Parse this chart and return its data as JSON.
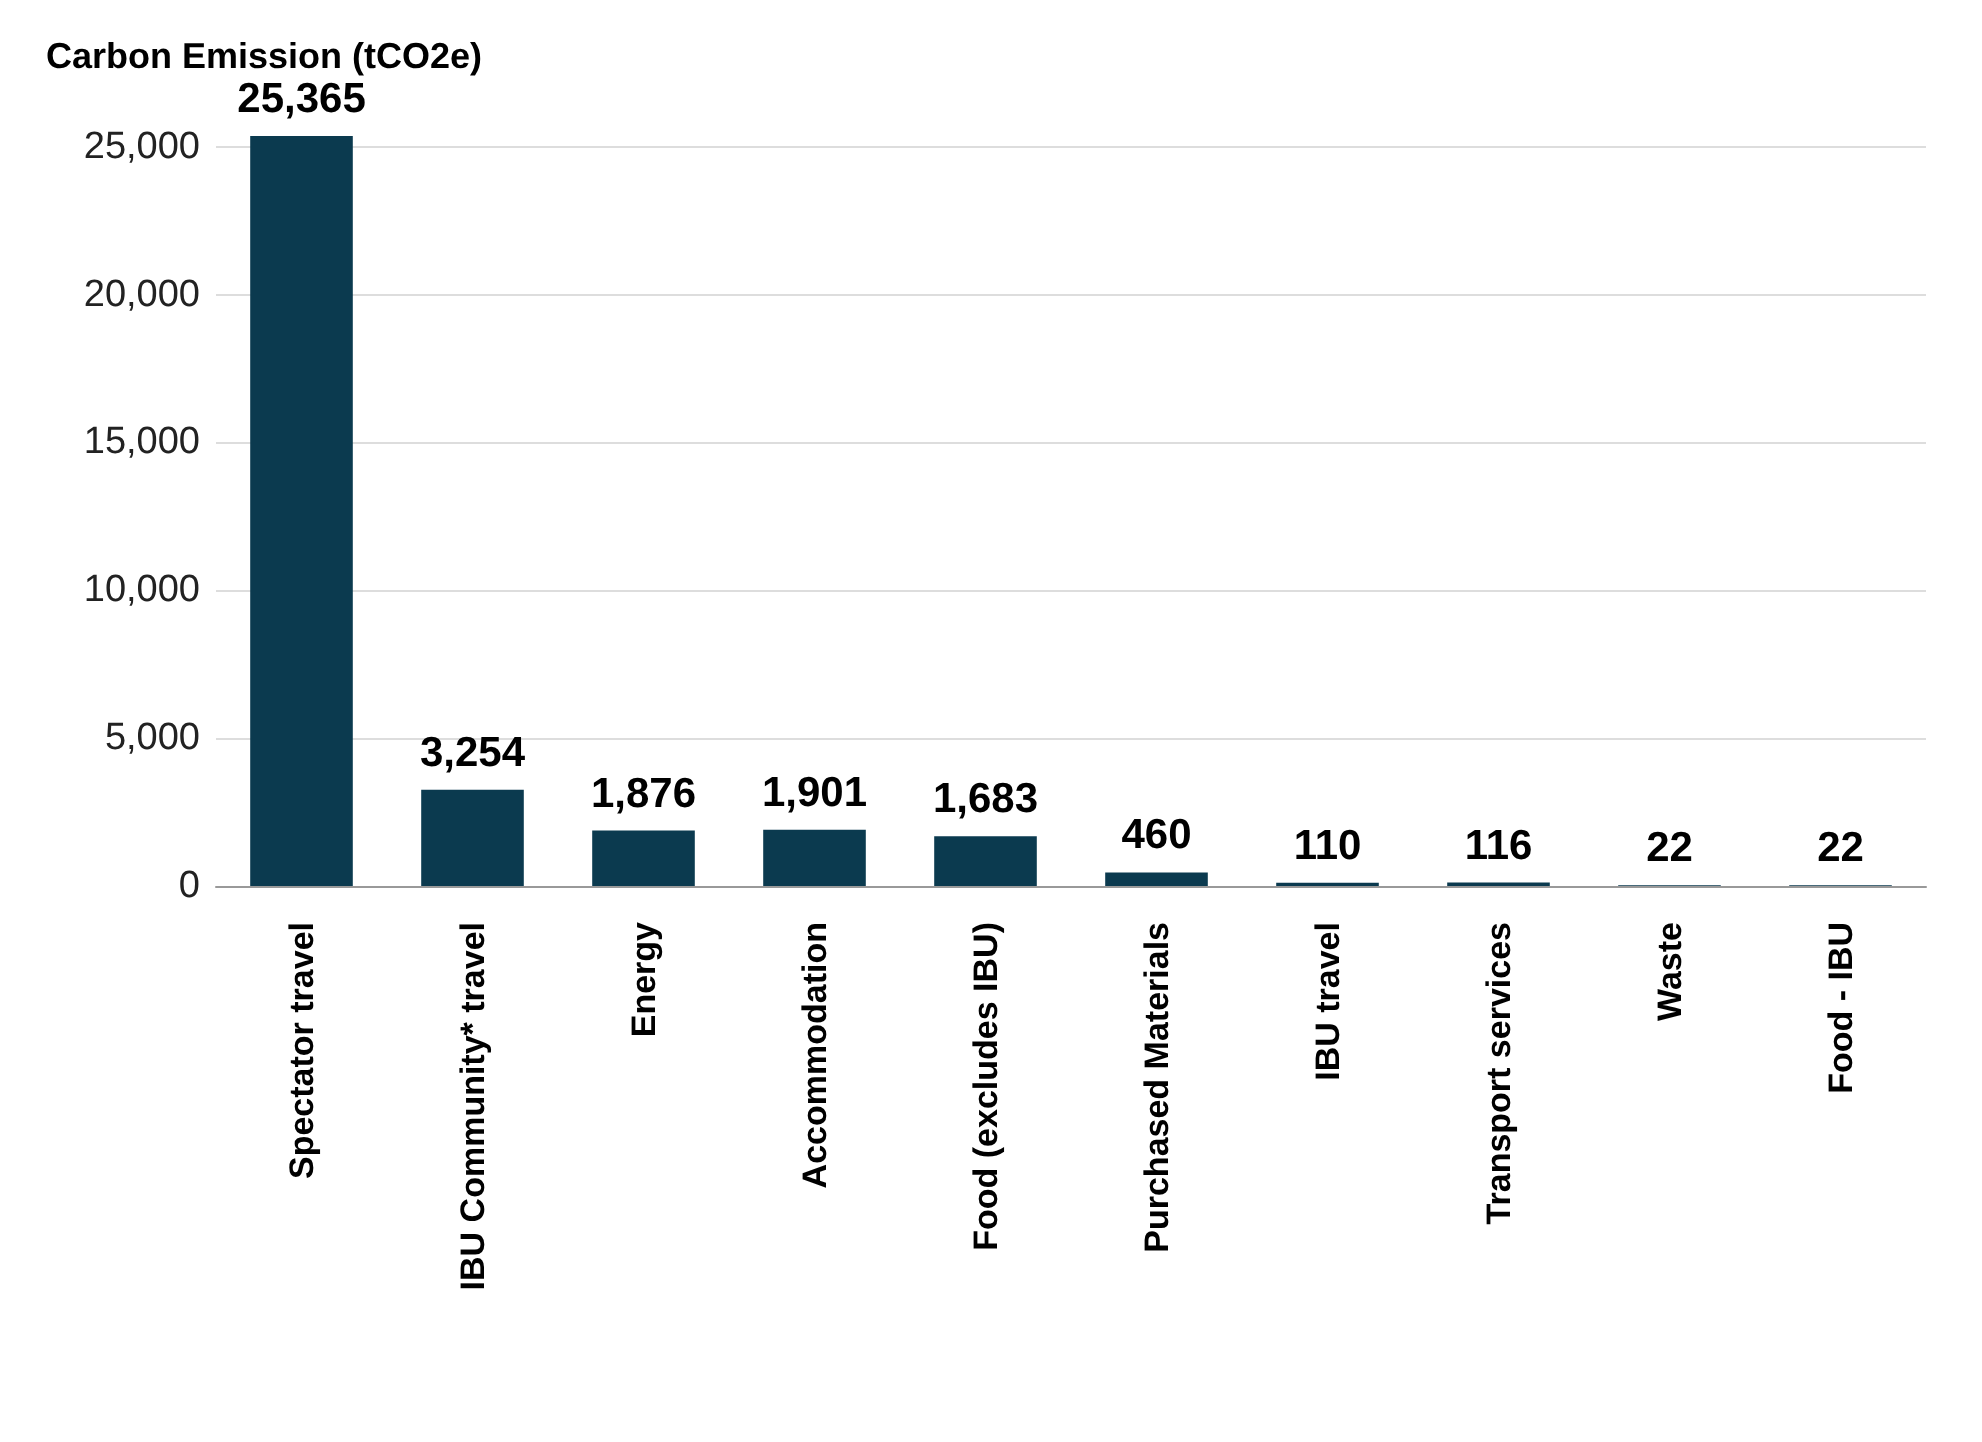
{
  "chart_data": {
    "type": "bar",
    "title": "Carbon Emission (tCO2e)",
    "categories": [
      "Spectator travel",
      "IBU Community* travel",
      "Energy",
      "Accommodation",
      "Food (excludes IBU)",
      "Purchased Materials",
      "IBU travel",
      "Transport services",
      "Waste",
      "Food - IBU"
    ],
    "values": [
      25365,
      3254,
      1876,
      1901,
      1683,
      460,
      110,
      116,
      22,
      22
    ],
    "value_labels": [
      "25,365",
      "3,254",
      "1,876",
      "1,901",
      "1,683",
      "460",
      "110",
      "116",
      "22",
      "22"
    ],
    "color": "#0b3a4f",
    "ylim": [
      0,
      25365
    ],
    "yticks": [
      0,
      {
        "value": 5000,
        "label": "5,000"
      },
      {
        "value": 10000,
        "label": "10,000"
      },
      {
        "value": 15000,
        "label": "15,000"
      },
      {
        "value": 20000,
        "label": "20,000"
      },
      {
        "value": 25000,
        "label": "25,000"
      }
    ],
    "grid": "y"
  }
}
